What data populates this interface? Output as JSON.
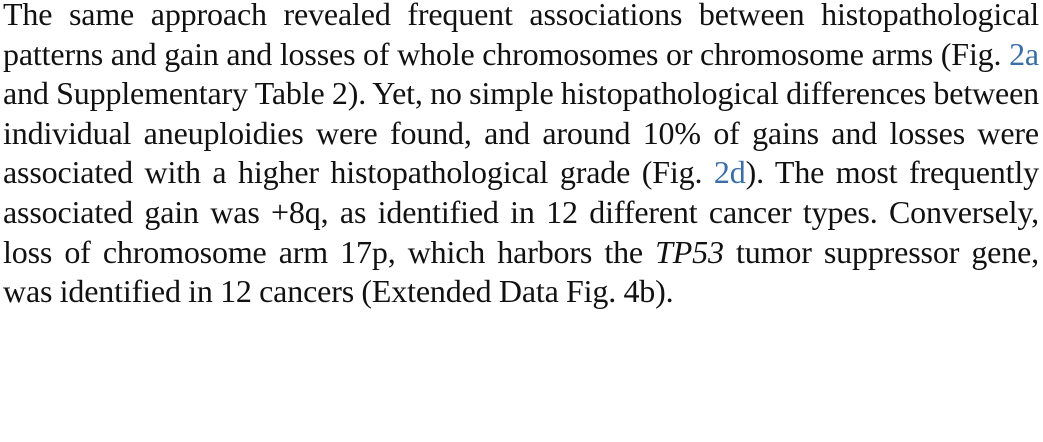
{
  "paragraph": {
    "s1_a": "The same approach revealed frequent associations between histo­pathological patterns and gain and losses of whole chromosomes or chromosome arms (",
    "s1_fig_prefix": "Fig. ",
    "s1_ref": "2a",
    "s1_b": " and Supplementary Table 2). Yet, no simple histopathological differences between individual aneuploi­dies were found, and around 10% of gains and losses were associated with a higher histopathological grade (",
    "s2_fig_prefix": "Fig. ",
    "s2_ref": "2d",
    "s2_b": "). The most frequently associated gain was +8q, as identified in 12 different cancer types. Conversely, loss of chromosome arm 17p, which harbors the ",
    "gene": "TP53",
    "s3_b": " tumor suppressor gene, was identified in 12 cancers (Extended Data Fig. 4b)."
  },
  "colors": {
    "text": "#111111",
    "link": "#3a6ea5"
  }
}
